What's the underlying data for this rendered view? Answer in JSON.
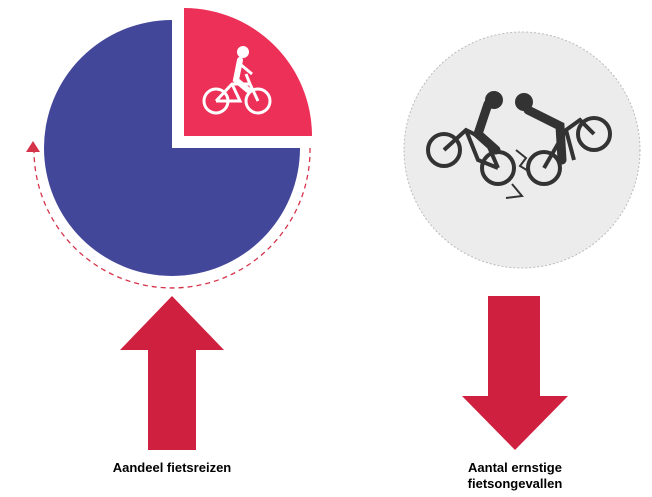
{
  "left": {
    "label": "Aandeel fietsreizen"
  },
  "right": {
    "label_lines": [
      "Aantal ernstige",
      "fietsongevallen"
    ]
  }
}
